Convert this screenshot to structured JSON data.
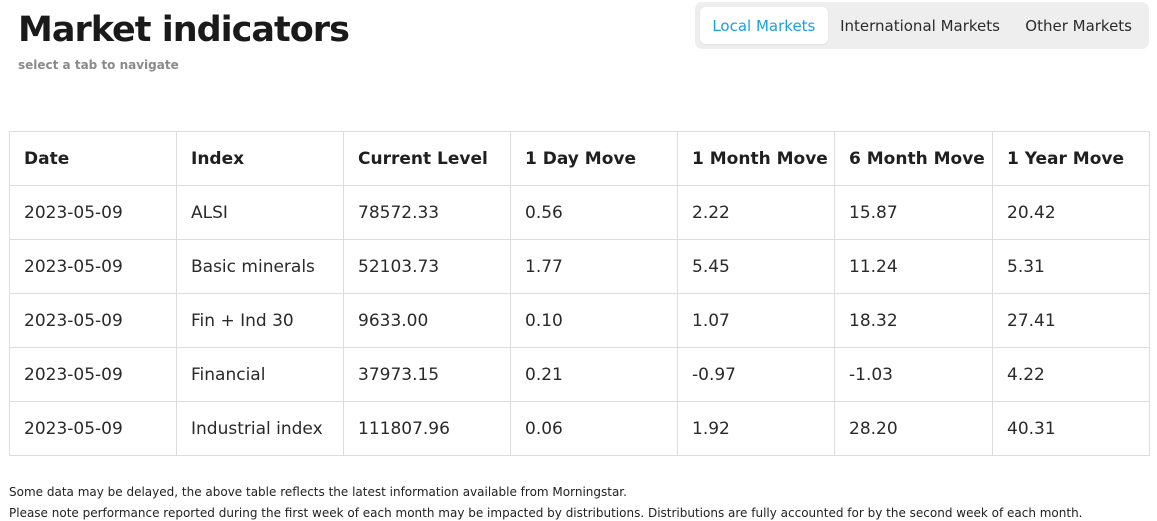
{
  "header": {
    "title": "Market indicators",
    "subtitle": "select a tab to navigate"
  },
  "tabs": [
    {
      "label": "Local Markets",
      "active": true
    },
    {
      "label": "International Markets",
      "active": false
    },
    {
      "label": "Other Markets",
      "active": false
    }
  ],
  "colors": {
    "accent": "#1ba0e1",
    "tab_bar_bg": "#eeeeee",
    "border": "#dddddd"
  },
  "table": {
    "columns": [
      "Date",
      "Index",
      "Current Level",
      "1 Day Move",
      "1 Month Move",
      "6 Month Move",
      "1 Year Move"
    ],
    "rows": [
      [
        "2023-05-09",
        "ALSI",
        "78572.33",
        "0.56",
        "2.22",
        "15.87",
        "20.42"
      ],
      [
        "2023-05-09",
        "Basic minerals",
        "52103.73",
        "1.77",
        "5.45",
        "11.24",
        "5.31"
      ],
      [
        "2023-05-09",
        "Fin + Ind 30",
        "9633.00",
        "0.10",
        "1.07",
        "18.32",
        "27.41"
      ],
      [
        "2023-05-09",
        "Financial",
        "37973.15",
        "0.21",
        "-0.97",
        "-1.03",
        "4.22"
      ],
      [
        "2023-05-09",
        "Industrial index",
        "111807.96",
        "0.06",
        "1.92",
        "28.20",
        "40.31"
      ]
    ]
  },
  "notes": [
    "Some data may be delayed, the above table reflects the latest information available from Morningstar.",
    "Please note performance reported during the first week of each month may be impacted by distributions. Distributions are fully accounted for by the second week of each month."
  ]
}
